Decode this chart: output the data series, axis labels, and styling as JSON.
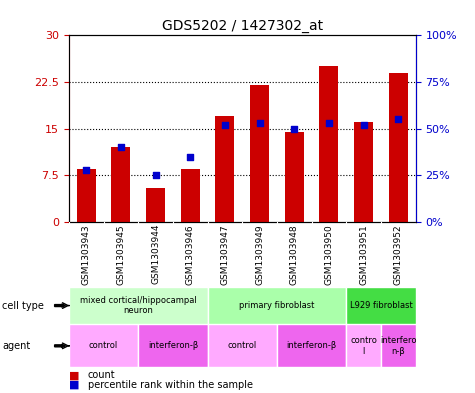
{
  "title": "GDS5202 / 1427302_at",
  "samples": [
    "GSM1303943",
    "GSM1303945",
    "GSM1303944",
    "GSM1303946",
    "GSM1303947",
    "GSM1303949",
    "GSM1303948",
    "GSM1303950",
    "GSM1303951",
    "GSM1303952"
  ],
  "counts": [
    8.5,
    12.0,
    5.5,
    8.5,
    17.0,
    22.0,
    14.5,
    25.0,
    16.0,
    24.0
  ],
  "percentiles": [
    28,
    40,
    25,
    35,
    52,
    53,
    50,
    53,
    52,
    55
  ],
  "ylim_left": [
    0,
    30
  ],
  "ylim_right": [
    0,
    100
  ],
  "yticks_left": [
    0,
    7.5,
    15,
    22.5,
    30
  ],
  "ytick_labels_left": [
    "0",
    "7.5",
    "15",
    "22.5",
    "30"
  ],
  "yticks_right": [
    0,
    25,
    50,
    75,
    100
  ],
  "ytick_labels_right": [
    "0%",
    "25%",
    "50%",
    "75%",
    "100%"
  ],
  "bar_color": "#cc0000",
  "dot_color": "#0000cc",
  "bar_width": 0.55,
  "cell_type_groups": [
    {
      "label": "mixed cortical/hippocampal\nneuron",
      "start": 0,
      "end": 4,
      "color": "#ccffcc"
    },
    {
      "label": "primary fibroblast",
      "start": 4,
      "end": 8,
      "color": "#aaffaa"
    },
    {
      "label": "L929 fibroblast",
      "start": 8,
      "end": 10,
      "color": "#44dd44"
    }
  ],
  "agent_groups": [
    {
      "label": "control",
      "start": 0,
      "end": 2,
      "color": "#ffaaff"
    },
    {
      "label": "interferon-β",
      "start": 2,
      "end": 4,
      "color": "#ee66ee"
    },
    {
      "label": "control",
      "start": 4,
      "end": 6,
      "color": "#ffaaff"
    },
    {
      "label": "interferon-β",
      "start": 6,
      "end": 8,
      "color": "#ee66ee"
    },
    {
      "label": "contro\nl",
      "start": 8,
      "end": 9,
      "color": "#ffaaff"
    },
    {
      "label": "interfero\nn-β",
      "start": 9,
      "end": 10,
      "color": "#ee66ee"
    }
  ],
  "tick_label_color_left": "#cc0000",
  "tick_label_color_right": "#0000cc",
  "xtick_bg_color": "#cccccc",
  "grid_yticks": [
    7.5,
    15,
    22.5
  ]
}
